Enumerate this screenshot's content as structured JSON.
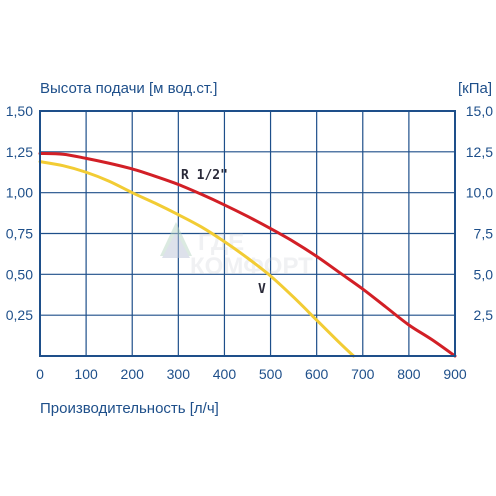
{
  "chart_data": {
    "type": "line",
    "ylabel": "Высота подачи [м вод.ст.]",
    "ylabel_right": "[кПа]",
    "xlabel": "Производительность [л/ч]",
    "xlim": [
      0,
      900
    ],
    "ylim": [
      0,
      1.5
    ],
    "ylim_right": [
      0,
      15
    ],
    "x_ticks": [
      "0",
      "100",
      "200",
      "300",
      "400",
      "500",
      "600",
      "700",
      "800",
      "900"
    ],
    "y_ticks": [
      "0,25",
      "0,50",
      "0,75",
      "1,00",
      "1,25",
      "1,50"
    ],
    "y_ticks_right": [
      "2,5",
      "5,0",
      "7,5",
      "10,0",
      "12,5",
      "15,0"
    ],
    "grid": true,
    "series": [
      {
        "name": "R 1/2\"",
        "color": "#d21f26",
        "x": [
          0,
          50,
          100,
          150,
          200,
          250,
          300,
          350,
          400,
          450,
          500,
          550,
          600,
          650,
          700,
          750,
          800,
          850,
          900
        ],
        "y": [
          1.24,
          1.235,
          1.21,
          1.18,
          1.145,
          1.1,
          1.05,
          0.99,
          0.925,
          0.855,
          0.78,
          0.7,
          0.61,
          0.51,
          0.41,
          0.3,
          0.19,
          0.1,
          0.0
        ]
      },
      {
        "name": "V",
        "color": "#f2cc34",
        "x": [
          0,
          50,
          100,
          150,
          200,
          250,
          300,
          350,
          400,
          450,
          500,
          550,
          600,
          650,
          680
        ],
        "y": [
          1.19,
          1.165,
          1.125,
          1.07,
          1.0,
          0.935,
          0.865,
          0.79,
          0.7,
          0.6,
          0.49,
          0.36,
          0.22,
          0.08,
          0.0
        ]
      }
    ]
  },
  "watermark": {
    "line1": "ГДЕ",
    "line2": "КОМФОРТ"
  }
}
